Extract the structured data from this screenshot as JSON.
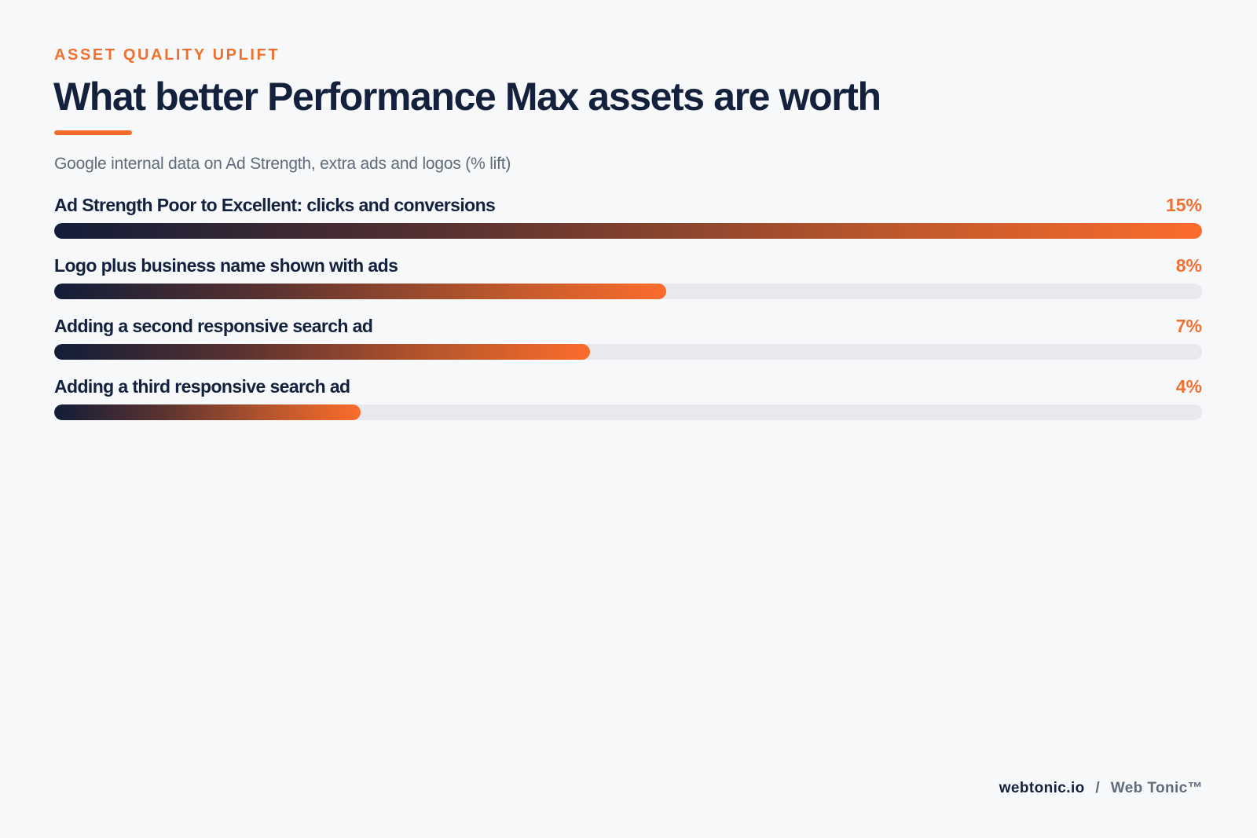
{
  "header": {
    "eyebrow": "ASSET QUALITY UPLIFT",
    "title": "What better Performance Max assets are worth",
    "subtitle": "Google internal data on Ad Strength, extra ads and logos (% lift)"
  },
  "chart_data": {
    "type": "bar",
    "orientation": "horizontal",
    "unit": "%",
    "xlim": [
      0,
      15
    ],
    "grid": false,
    "categories": [
      "Ad Strength Poor to Excellent: clicks and conversions",
      "Logo plus business name shown with ads",
      "Adding a second responsive search ad",
      "Adding a third responsive search ad"
    ],
    "values": [
      15,
      8,
      7,
      4
    ],
    "value_labels": [
      "15%",
      "8%",
      "7%",
      "4%"
    ]
  },
  "colors": {
    "accent": "#f07030",
    "navy": "#14213d",
    "track": "#e7e9ee",
    "background": "#f7f8fa"
  },
  "footer": {
    "site": "webtonic.io",
    "separator": "/",
    "brand": "Web Tonic™"
  }
}
